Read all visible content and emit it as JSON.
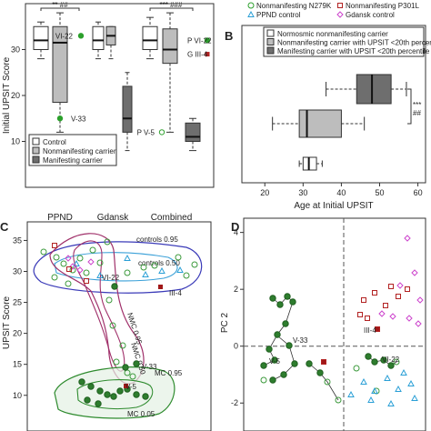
{
  "chart_data": [
    {
      "panel": "A",
      "type": "box",
      "ylabel": "Initial UPSIT Score",
      "ylim": [
        0,
        40
      ],
      "yticks": [
        10,
        20,
        30
      ],
      "groups": [
        "PPND",
        "Gdansk",
        "Combined"
      ],
      "series": [
        {
          "name": "Control",
          "color": "#ffffff"
        },
        {
          "name": "Nonmanifesting carrier",
          "color": "#bdbdbd"
        },
        {
          "name": "Manifesting carrier",
          "color": "#6e6e6e"
        }
      ],
      "boxes": [
        {
          "group": "PPND",
          "series": "Control",
          "min": 28,
          "q1": 30,
          "median": 32,
          "q3": 35,
          "max": 36
        },
        {
          "group": "PPND",
          "series": "Nonmanifesting carrier",
          "min": 12,
          "q1": 18.5,
          "median": 31.5,
          "q3": 35,
          "max": 38
        },
        {
          "group": "PPND",
          "series": "Manifesting carrier",
          "min": 10,
          "q1": 10,
          "median": 10.5,
          "q3": 11,
          "max": 11
        },
        {
          "group": "Gdansk",
          "series": "Control",
          "min": 28,
          "q1": 30,
          "median": 32,
          "q3": 35,
          "max": 36
        },
        {
          "group": "Gdansk",
          "series": "Nonmanifesting carrier",
          "min": 28,
          "q1": 31,
          "median": 33,
          "q3": 35,
          "max": 35
        },
        {
          "group": "Gdansk",
          "series": "Manifesting carrier",
          "min": 8,
          "q1": 12,
          "median": 15,
          "q3": 22,
          "max": 25
        },
        {
          "group": "Combined",
          "series": "Control",
          "min": 28,
          "q1": 30,
          "median": 32,
          "q3": 35,
          "max": 37
        },
        {
          "group": "Combined",
          "series": "Nonmanifesting carrier",
          "min": 12,
          "q1": 27,
          "median": 30,
          "q3": 34.5,
          "max": 38
        },
        {
          "group": "Combined",
          "series": "Manifesting carrier",
          "min": 8,
          "q1": 10,
          "median": 11,
          "q3": 14,
          "max": 15
        }
      ],
      "points": [
        {
          "x_group": "PPND",
          "y": 33,
          "label": "VI-22",
          "color": "#2ca02c"
        },
        {
          "x_group": "PPND",
          "y": 15,
          "label": "V-33",
          "color": "#2ca02c"
        },
        {
          "x_group": "Combined",
          "y": 32,
          "label": "P VI-22",
          "color": "#2ca02c"
        },
        {
          "x_group": "Combined",
          "y": 29,
          "label": "G III-4",
          "color": "#b22222"
        },
        {
          "x_group": "Combined",
          "y": 12,
          "label": "P V-5",
          "color": "#2ca02c"
        }
      ],
      "annotations": [
        "** ##",
        "*** ###"
      ],
      "legend_position": "bottom-left"
    },
    {
      "panel": "B",
      "type": "box",
      "xlabel": "Age at Initial UPSIT",
      "xlim": [
        14,
        62
      ],
      "xticks": [
        20,
        30,
        40,
        50,
        60
      ],
      "series": [
        {
          "name": "Normosmic nonmanifesting carrier",
          "color": "#ffffff",
          "min": 29,
          "q1": 30,
          "median": 31.5,
          "q3": 33.5,
          "max": 35
        },
        {
          "name": "Nonmanifesting carrier with UPSIT <20th percentile",
          "color": "#bdbdbd",
          "min": 22,
          "q1": 29,
          "median": 31,
          "q3": 40,
          "max": 46
        },
        {
          "name": "Manifesting carrier with UPSIT <20th percentile",
          "color": "#6e6e6e",
          "min": 36,
          "q1": 44,
          "median": 48,
          "q3": 53,
          "max": 57
        }
      ],
      "annotations": [
        "***",
        "##"
      ],
      "legend_position": "top"
    },
    {
      "panel": "C",
      "type": "scatter",
      "ylabel": "UPSIT Score",
      "ylim": [
        6,
        38
      ],
      "yticks": [
        10,
        15,
        20,
        25,
        30,
        35
      ],
      "contour_labels": [
        "controls 0.95",
        "controls 0.50",
        "NMC 0.95",
        "NMC 0.50",
        "MC 0.95",
        "MC 0.05"
      ],
      "point_labels": [
        "VI-22",
        "III-4",
        "V-33",
        "V-5"
      ]
    },
    {
      "panel": "D",
      "type": "scatter",
      "ylabel": "PC 2",
      "ylim": [
        -2.6,
        4.5
      ],
      "yticks": [
        -2,
        0,
        2,
        4
      ],
      "legend": [
        {
          "name": "Nonmanifesting N279K",
          "marker": "circle",
          "color": "#2ca02c"
        },
        {
          "name": "Nonmanifesting P301L",
          "marker": "square",
          "color": "#b22222"
        },
        {
          "name": "PPND control",
          "marker": "triangle",
          "color": "#2a9fd6"
        },
        {
          "name": "Gdansk control",
          "marker": "diamond",
          "color": "#cc44cc"
        }
      ],
      "point_labels": [
        "V-33",
        "V-5",
        "III-4",
        "VI-22"
      ]
    }
  ]
}
